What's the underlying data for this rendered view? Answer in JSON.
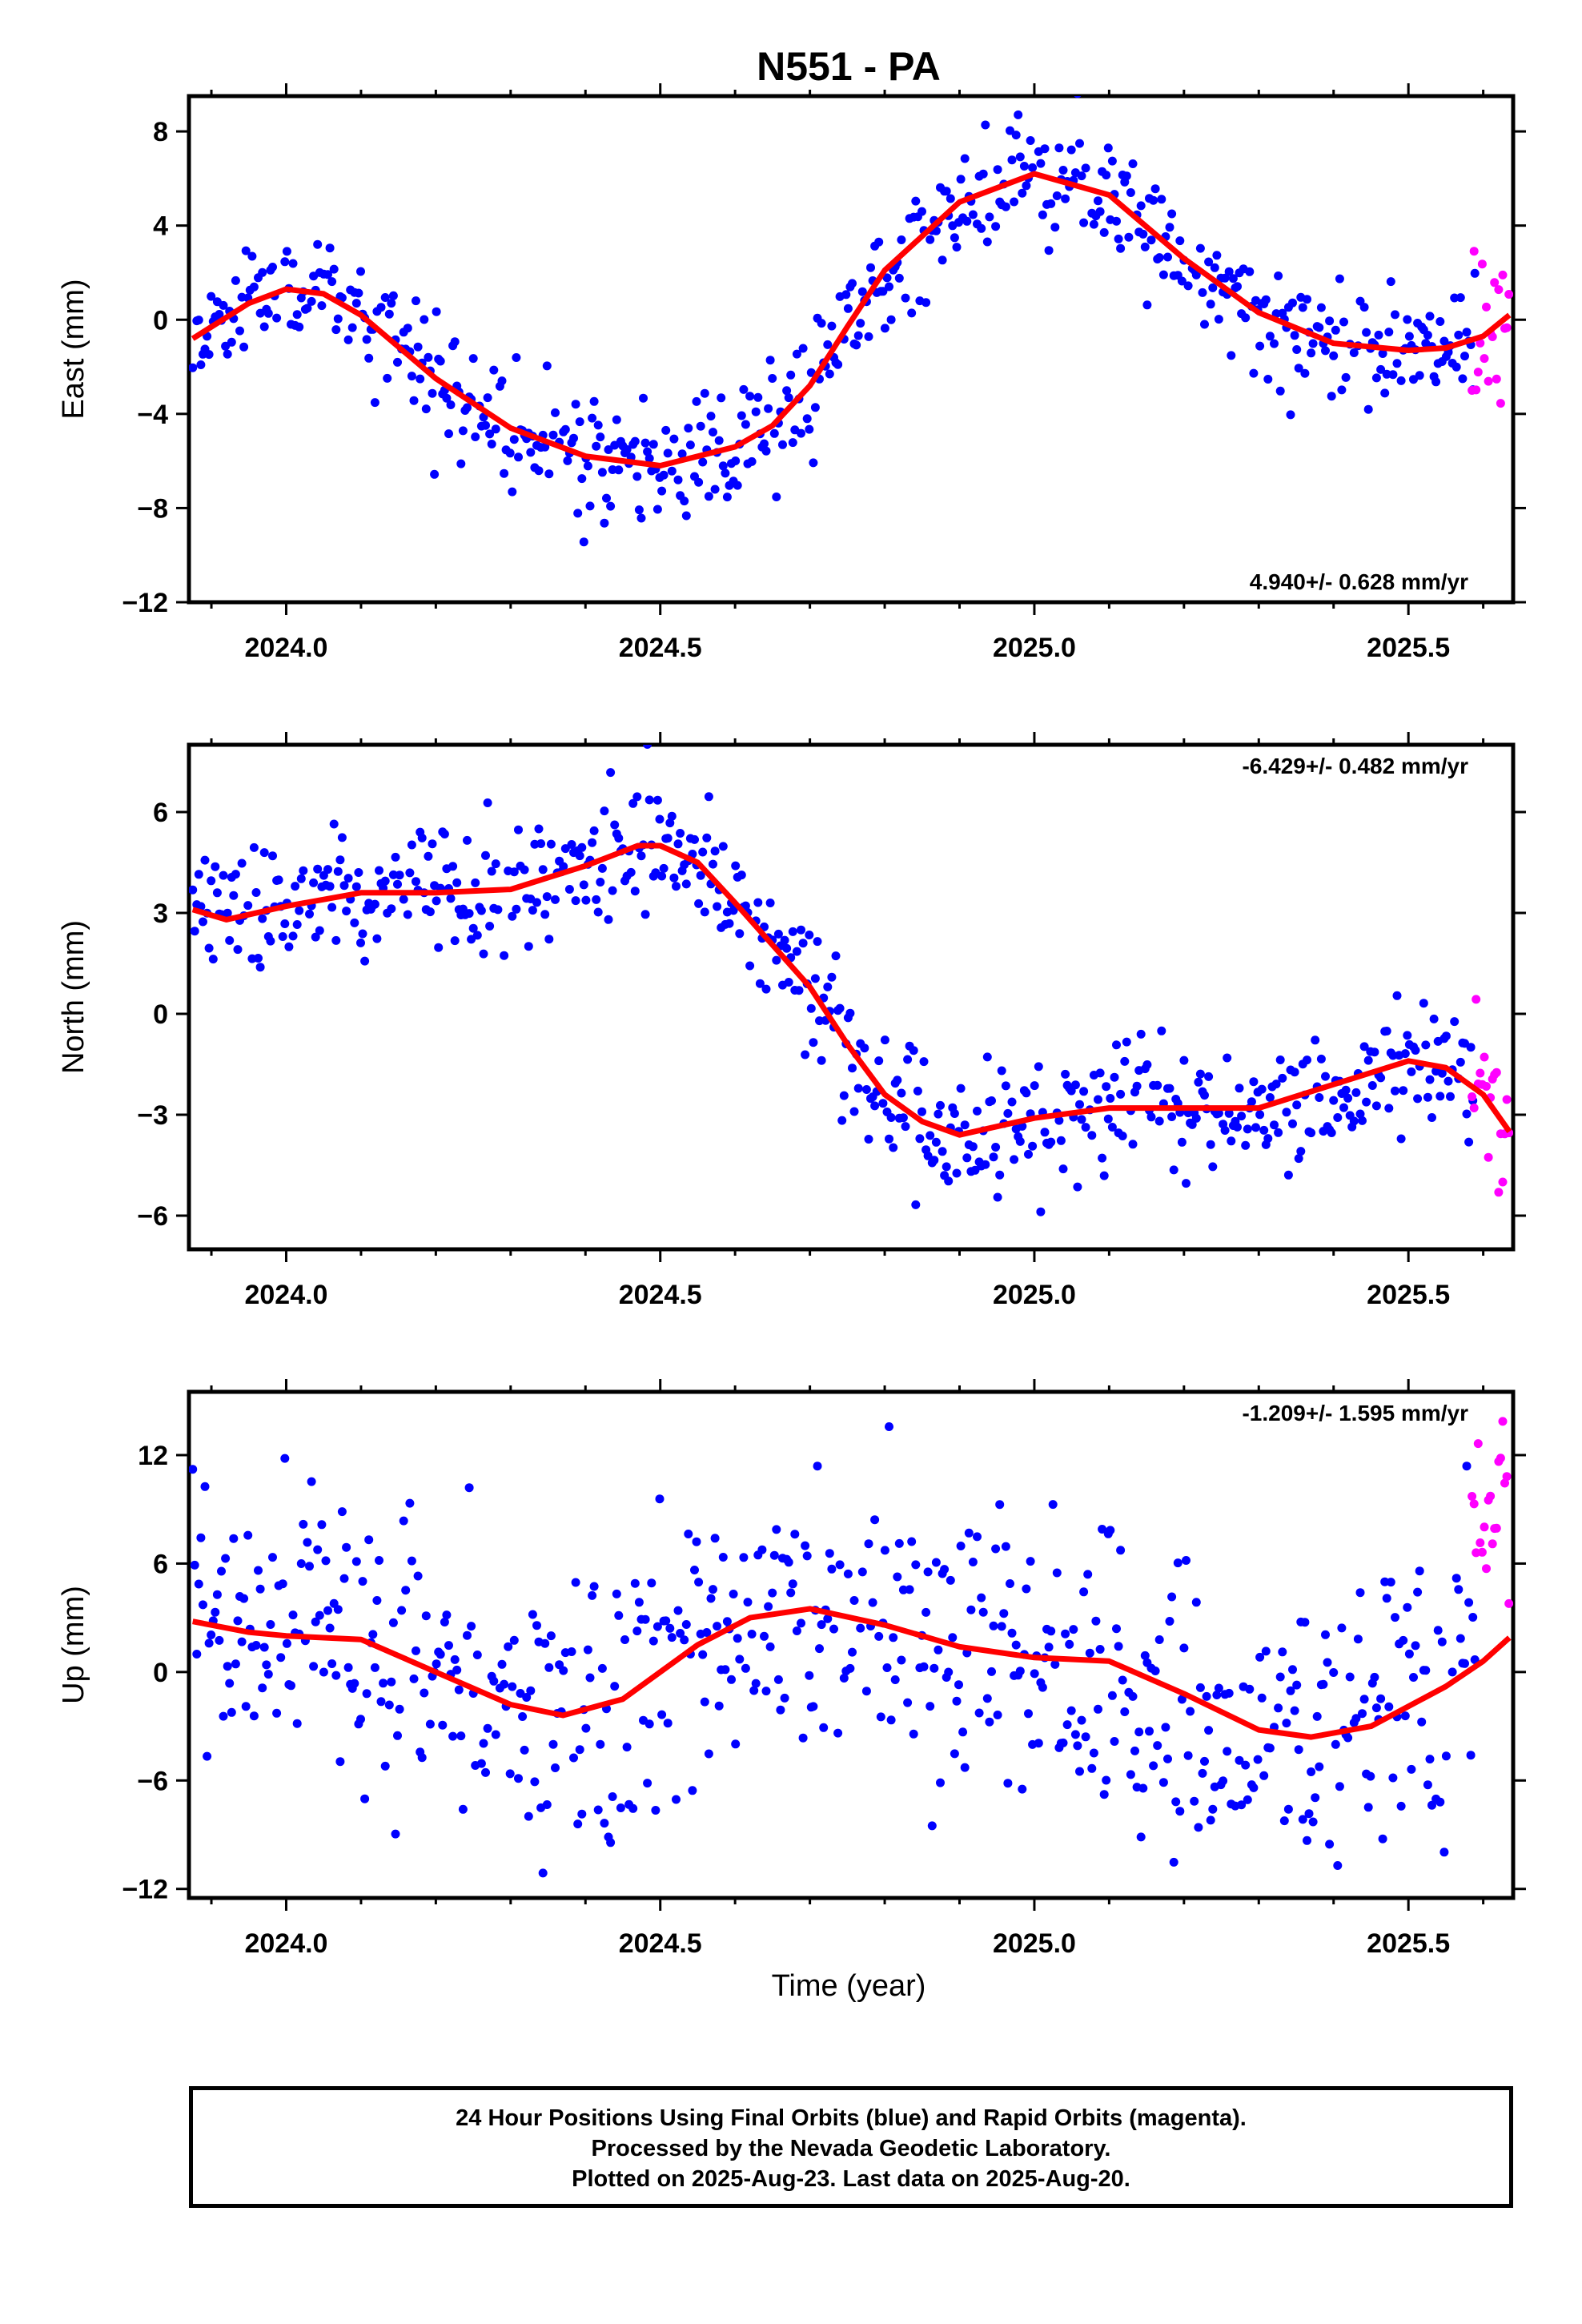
{
  "chart_data": [
    {
      "type": "scatter",
      "title": "N551 - PA",
      "ylabel": "East (mm)",
      "xlim": [
        2023.87,
        2025.64
      ],
      "ylim": [
        -12,
        9.5
      ],
      "yticks": [
        "8",
        "4",
        "0",
        "−4",
        "−8",
        "−12"
      ],
      "ytick_values": [
        8,
        4,
        0,
        -4,
        -8,
        -12
      ],
      "xticks": [
        "2024.0",
        "2024.5",
        "2025.0",
        "2025.5"
      ],
      "xtick_values": [
        2024.0,
        2024.5,
        2025.0,
        2025.5
      ],
      "rate_text": "4.940+/- 0.628 mm/yr",
      "rate_position": "bottom-right",
      "colors": {
        "final": "#0000ff",
        "rapid": "#ff00ff",
        "fit": "#ff0000"
      },
      "series": [
        {
          "name": "Final Orbits (blue)",
          "type": "scatter",
          "color": "#0000ff",
          "noise": 1.3,
          "seed": 11
        },
        {
          "name": "Rapid Orbits (magenta)",
          "type": "scatter",
          "color": "#ff00ff",
          "noise": 1.9,
          "seed": 12
        },
        {
          "name": "fit",
          "type": "line",
          "color": "#ff0000",
          "x": [
            2023.875,
            2023.95,
            2024.0,
            2024.05,
            2024.1,
            2024.2,
            2024.3,
            2024.4,
            2024.5,
            2024.6,
            2024.65,
            2024.7,
            2024.75,
            2024.8,
            2024.9,
            2025.0,
            2025.1,
            2025.2,
            2025.3,
            2025.4,
            2025.5,
            2025.55,
            2025.6,
            2025.635
          ],
          "y": [
            -0.8,
            0.7,
            1.3,
            1.1,
            0.2,
            -2.5,
            -4.6,
            -5.8,
            -6.2,
            -5.4,
            -4.5,
            -2.8,
            -0.3,
            2.1,
            5.0,
            6.2,
            5.3,
            2.6,
            0.3,
            -1.0,
            -1.3,
            -1.2,
            -0.7,
            0.2
          ]
        }
      ]
    },
    {
      "type": "scatter",
      "ylabel": "North (mm)",
      "xlim": [
        2023.87,
        2025.64
      ],
      "ylim": [
        -7,
        8
      ],
      "yticks": [
        "6",
        "3",
        "0",
        "−3",
        "−6"
      ],
      "ytick_values": [
        6,
        3,
        0,
        -3,
        -6
      ],
      "xticks": [
        "2024.0",
        "2024.5",
        "2025.0",
        "2025.5"
      ],
      "xtick_values": [
        2024.0,
        2024.5,
        2025.0,
        2025.5
      ],
      "rate_text": "-6.429+/- 0.482 mm/yr",
      "rate_position": "top-right",
      "colors": {
        "final": "#0000ff",
        "rapid": "#ff00ff",
        "fit": "#ff0000"
      },
      "series": [
        {
          "name": "Final Orbits (blue)",
          "type": "scatter",
          "color": "#0000ff",
          "noise": 1.0,
          "seed": 21
        },
        {
          "name": "Rapid Orbits (magenta)",
          "type": "scatter",
          "color": "#ff00ff",
          "noise": 1.2,
          "seed": 22
        },
        {
          "name": "fit",
          "type": "line",
          "color": "#ff0000",
          "x": [
            2023.875,
            2023.92,
            2024.0,
            2024.1,
            2024.2,
            2024.3,
            2024.4,
            2024.47,
            2024.5,
            2024.55,
            2024.6,
            2024.7,
            2024.75,
            2024.8,
            2024.85,
            2024.9,
            2025.0,
            2025.1,
            2025.2,
            2025.3,
            2025.4,
            2025.5,
            2025.55,
            2025.6,
            2025.635
          ],
          "y": [
            3.1,
            2.8,
            3.2,
            3.6,
            3.6,
            3.7,
            4.4,
            5.0,
            5.0,
            4.5,
            3.3,
            0.8,
            -0.9,
            -2.4,
            -3.2,
            -3.6,
            -3.1,
            -2.8,
            -2.8,
            -2.8,
            -2.1,
            -1.4,
            -1.6,
            -2.4,
            -3.5
          ]
        }
      ]
    },
    {
      "type": "scatter",
      "ylabel": "Up (mm)",
      "xlabel": "Time (year)",
      "xlim": [
        2023.87,
        2025.64
      ],
      "ylim": [
        -12.5,
        15.5
      ],
      "yticks": [
        "12",
        "6",
        "0",
        "−6",
        "−12"
      ],
      "ytick_values": [
        12,
        6,
        0,
        -6,
        -12
      ],
      "xticks": [
        "2024.0",
        "2024.5",
        "2025.0",
        "2025.5"
      ],
      "xtick_values": [
        2024.0,
        2024.5,
        2025.0,
        2025.5
      ],
      "rate_text": "-1.209+/- 1.595 mm/yr",
      "rate_position": "top-right",
      "colors": {
        "final": "#0000ff",
        "rapid": "#ff00ff",
        "fit": "#ff0000"
      },
      "series": [
        {
          "name": "Final Orbits (blue)",
          "type": "scatter",
          "color": "#0000ff",
          "noise": 4.0,
          "seed": 31
        },
        {
          "name": "Rapid Orbits (magenta)",
          "type": "scatter",
          "color": "#ff00ff",
          "noise": 2.2,
          "seed": 32,
          "offset": 8.0
        },
        {
          "name": "fit",
          "type": "line",
          "color": "#ff0000",
          "x": [
            2023.875,
            2023.95,
            2024.0,
            2024.1,
            2024.2,
            2024.3,
            2024.37,
            2024.45,
            2024.55,
            2024.62,
            2024.7,
            2024.8,
            2024.9,
            2025.0,
            2025.1,
            2025.2,
            2025.3,
            2025.37,
            2025.45,
            2025.55,
            2025.6,
            2025.635
          ],
          "y": [
            2.8,
            2.2,
            2.0,
            1.8,
            0.0,
            -1.8,
            -2.4,
            -1.5,
            1.5,
            3.0,
            3.5,
            2.6,
            1.4,
            0.8,
            0.6,
            -1.2,
            -3.2,
            -3.6,
            -3.0,
            -0.8,
            0.6,
            1.9
          ]
        }
      ]
    }
  ],
  "caption": {
    "line1": "24 Hour Positions Using Final Orbits (blue) and Rapid Orbits (magenta).",
    "line2": "Processed by the Nevada Geodetic Laboratory.",
    "line3": "Plotted on 2025-Aug-23. Last data on 2025-Aug-20."
  }
}
